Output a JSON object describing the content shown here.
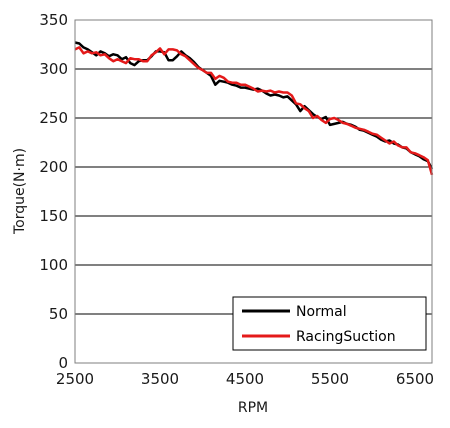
{
  "chart_data": {
    "type": "line",
    "title": "",
    "xlabel": "RPM",
    "ylabel": "Torque(N·m)",
    "xlim": [
      2500,
      6700
    ],
    "ylim": [
      0,
      350
    ],
    "x_ticks": [
      2500,
      3500,
      4500,
      5500,
      6500
    ],
    "y_ticks": [
      0,
      50,
      100,
      150,
      200,
      250,
      300,
      350
    ],
    "grid": "horizontal",
    "legend_position": "bottom-right",
    "series": [
      {
        "name": "Normal",
        "color": "#000000",
        "x": [
          2500,
          2550,
          2600,
          2650,
          2700,
          2750,
          2800,
          2850,
          2900,
          2950,
          3000,
          3050,
          3100,
          3150,
          3200,
          3250,
          3300,
          3350,
          3400,
          3450,
          3500,
          3550,
          3600,
          3650,
          3700,
          3750,
          3800,
          3850,
          3900,
          3950,
          4000,
          4050,
          4100,
          4150,
          4200,
          4250,
          4300,
          4350,
          4400,
          4450,
          4500,
          4550,
          4600,
          4650,
          4700,
          4750,
          4800,
          4850,
          4900,
          4950,
          5000,
          5050,
          5100,
          5150,
          5200,
          5250,
          5300,
          5350,
          5400,
          5450,
          5500,
          5550,
          5600,
          5650,
          5700,
          5750,
          5800,
          5850,
          5900,
          5950,
          6000,
          6050,
          6100,
          6150,
          6200,
          6250,
          6300,
          6350,
          6400,
          6450,
          6500,
          6550,
          6600,
          6650,
          6700
        ],
        "values": [
          327,
          326,
          322,
          320,
          317,
          314,
          318,
          316,
          313,
          315,
          314,
          310,
          312,
          306,
          304,
          308,
          309,
          309,
          313,
          318,
          318,
          317,
          309,
          309,
          313,
          318,
          314,
          311,
          307,
          302,
          299,
          296,
          293,
          284,
          288,
          287,
          286,
          284,
          283,
          281,
          281,
          280,
          279,
          280,
          278,
          275,
          273,
          274,
          273,
          271,
          272,
          268,
          264,
          257,
          262,
          258,
          254,
          251,
          249,
          251,
          243,
          244,
          245,
          246,
          244,
          243,
          241,
          238,
          237,
          235,
          233,
          231,
          228,
          226,
          227,
          224,
          223,
          220,
          219,
          215,
          213,
          211,
          208,
          206,
          198
        ]
      },
      {
        "name": "RacingSuction",
        "color": "#e41a1a",
        "x": [
          2500,
          2550,
          2600,
          2650,
          2700,
          2750,
          2800,
          2850,
          2900,
          2950,
          3000,
          3050,
          3100,
          3150,
          3200,
          3250,
          3300,
          3350,
          3400,
          3450,
          3500,
          3550,
          3600,
          3650,
          3700,
          3750,
          3800,
          3850,
          3900,
          3950,
          4000,
          4050,
          4100,
          4150,
          4200,
          4250,
          4300,
          4350,
          4400,
          4450,
          4500,
          4550,
          4600,
          4650,
          4700,
          4750,
          4800,
          4850,
          4900,
          4950,
          5000,
          5050,
          5100,
          5150,
          5200,
          5250,
          5300,
          5350,
          5400,
          5450,
          5500,
          5550,
          5600,
          5650,
          5700,
          5750,
          5800,
          5850,
          5900,
          5950,
          6000,
          6050,
          6100,
          6150,
          6200,
          6250,
          6300,
          6350,
          6400,
          6450,
          6500,
          6550,
          6600,
          6650,
          6700
        ],
        "values": [
          320,
          322,
          316,
          318,
          316,
          317,
          314,
          315,
          311,
          308,
          310,
          308,
          306,
          311,
          310,
          310,
          308,
          308,
          314,
          317,
          321,
          315,
          320,
          320,
          319,
          315,
          313,
          309,
          305,
          301,
          299,
          296,
          296,
          290,
          293,
          291,
          287,
          286,
          286,
          284,
          284,
          282,
          280,
          277,
          278,
          277,
          278,
          276,
          277,
          276,
          276,
          273,
          265,
          264,
          260,
          257,
          250,
          252,
          248,
          245,
          249,
          250,
          248,
          245,
          244,
          242,
          240,
          239,
          238,
          236,
          234,
          233,
          230,
          227,
          224,
          226,
          222,
          220,
          220,
          215,
          214,
          212,
          210,
          207,
          192
        ]
      }
    ]
  }
}
